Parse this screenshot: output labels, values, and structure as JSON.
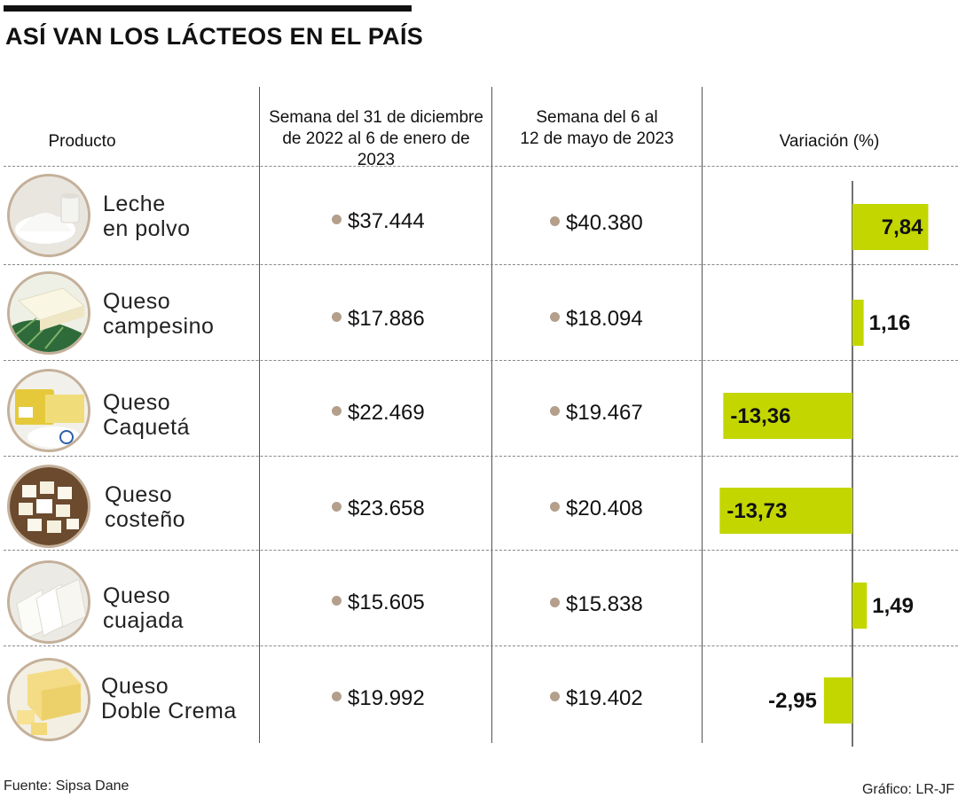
{
  "title": "ASÍ VAN LOS LÁCTEOS EN EL PAÍS",
  "headers": {
    "product": "Producto",
    "week1_line1": "Semana del 31 de diciembre",
    "week1_line2": "de 2022 al 6 de enero de 2023",
    "week2_line1": "Semana del 6 al",
    "week2_line2": "12 de mayo de 2023",
    "variation": "Variación (%)"
  },
  "rows": [
    {
      "name_line1": "Leche",
      "name_line2": "en polvo",
      "price1": "$37.444",
      "price2": "$40.380",
      "variation": 7.84,
      "variation_label": "7,84",
      "image": "powdered-milk-image"
    },
    {
      "name_line1": "Queso",
      "name_line2": "campesino",
      "price1": "$17.886",
      "price2": "$18.094",
      "variation": 1.16,
      "variation_label": "1,16",
      "image": "farm-cheese-image"
    },
    {
      "name_line1": "Queso",
      "name_line2": "Caquetá",
      "price1": "$22.469",
      "price2": "$19.467",
      "variation": -13.36,
      "variation_label": "-13,36",
      "image": "caqueta-cheese-image"
    },
    {
      "name_line1": "Queso",
      "name_line2": "costeño",
      "price1": "$23.658",
      "price2": "$20.408",
      "variation": -13.73,
      "variation_label": "-13,73",
      "image": "coastal-cheese-cubes-image"
    },
    {
      "name_line1": "Queso",
      "name_line2": "cuajada",
      "price1": "$15.605",
      "price2": "$15.838",
      "variation": 1.49,
      "variation_label": "1,49",
      "image": "curd-cheese-image"
    },
    {
      "name_line1": "Queso",
      "name_line2": "Doble Crema",
      "price1": "$19.992",
      "price2": "$19.402",
      "variation": -2.95,
      "variation_label": "-2,95",
      "image": "double-cream-cheese-image"
    }
  ],
  "footer": {
    "source": "Fuente: Sipsa Dane",
    "credit": "Gráfico: LR-JF"
  },
  "colors": {
    "bar": "#c3d600",
    "dot": "#b39f8b",
    "ring": "#c4b09a"
  },
  "chart_data": {
    "type": "bar",
    "orientation": "horizontal",
    "title": "Variación (%)",
    "categories": [
      "Leche en polvo",
      "Queso campesino",
      "Queso Caquetá",
      "Queso costeño",
      "Queso cuajada",
      "Queso Doble Crema"
    ],
    "values": [
      7.84,
      1.16,
      -13.36,
      -13.73,
      1.49,
      -2.95
    ],
    "xlim": [
      -15,
      10
    ],
    "series_compare": [
      {
        "name": "Semana del 31 de diciembre de 2022 al 6 de enero de 2023",
        "values": [
          37444,
          17886,
          22469,
          23658,
          15605,
          19992
        ]
      },
      {
        "name": "Semana del 6 al 12 de mayo de 2023",
        "values": [
          40380,
          18094,
          19467,
          20408,
          15838,
          19402
        ]
      }
    ]
  }
}
